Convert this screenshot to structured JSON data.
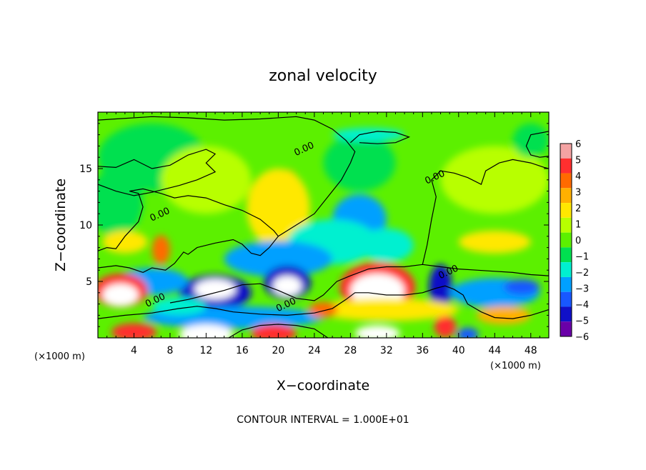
{
  "chart_data": {
    "type": "heatmap",
    "title": "zonal velocity",
    "xlabel": "X−coordinate",
    "ylabel": "Z−coordinate",
    "x_unit_left": "(×1000 m)",
    "x_unit_right": "(×1000 m)",
    "xlim": [
      0,
      50
    ],
    "ylim": [
      0,
      20
    ],
    "x_ticks": [
      4,
      8,
      12,
      16,
      20,
      24,
      28,
      32,
      36,
      40,
      44,
      48
    ],
    "x_tick_labels": [
      "4",
      "8",
      "12",
      "16",
      "20",
      "24",
      "28",
      "32",
      "36",
      "40",
      "44",
      "48"
    ],
    "y_ticks": [
      5,
      10,
      15
    ],
    "y_tick_labels": [
      "5",
      "10",
      "15"
    ],
    "colorbar": {
      "min": -6,
      "max": 6,
      "tick_labels": [
        "6",
        "5",
        "4",
        "3",
        "2",
        "1",
        "0",
        "−1",
        "−2",
        "−3",
        "−4",
        "−5",
        "−6"
      ],
      "colors": [
        "#f4a3a3",
        "#ff2f2f",
        "#ff6a00",
        "#ffb000",
        "#ffe800",
        "#b8ff00",
        "#5cf000",
        "#00e050",
        "#00f0d0",
        "#00a0ff",
        "#1858ff",
        "#1010c8",
        "#6a00a8"
      ]
    },
    "contour_labels": [
      "0.00",
      "0.00",
      "0.00",
      "0.00",
      "0.00",
      "0.00"
    ],
    "contour_interval_text": "CONTOUR INTERVAL = 1.000E+01",
    "blobs": [
      {
        "x": 21,
        "y": 12.7,
        "rx": 1.6,
        "ry": 2.2,
        "v": 3.2
      },
      {
        "x": 20,
        "y": 11.5,
        "rx": 3.5,
        "ry": 3.5,
        "v": 1.6
      },
      {
        "x": 6,
        "y": 16,
        "rx": 6,
        "ry": 3,
        "v": -0.9
      },
      {
        "x": 2,
        "y": 12,
        "rx": 3,
        "ry": 3,
        "v": -0.8
      },
      {
        "x": 12,
        "y": 14,
        "rx": 5,
        "ry": 3,
        "v": 0.7
      },
      {
        "x": 29,
        "y": 15.5,
        "rx": 4,
        "ry": 2.5,
        "v": -1.0
      },
      {
        "x": 30,
        "y": 18,
        "rx": 4,
        "ry": 0.6,
        "v": -1.6
      },
      {
        "x": 44,
        "y": 14,
        "rx": 6,
        "ry": 3,
        "v": 0.5
      },
      {
        "x": 48,
        "y": 17.5,
        "rx": 2,
        "ry": 1.5,
        "v": -1.0
      },
      {
        "x": 29,
        "y": 10.5,
        "rx": 3,
        "ry": 2.2,
        "v": -2.6
      },
      {
        "x": 26,
        "y": 8.5,
        "rx": 5,
        "ry": 2,
        "v": -2.5
      },
      {
        "x": 20,
        "y": 7,
        "rx": 6,
        "ry": 1.6,
        "v": -3.5
      },
      {
        "x": 32,
        "y": 8.2,
        "rx": 3,
        "ry": 1.5,
        "v": -2.0
      },
      {
        "x": 13,
        "y": 4,
        "rx": 4,
        "ry": 1.6,
        "v": -5.0
      },
      {
        "x": 13,
        "y": 4.3,
        "rx": 2.3,
        "ry": 0.9,
        "v": -7
      },
      {
        "x": 21,
        "y": 4.9,
        "rx": 2.6,
        "ry": 1.5,
        "v": -5.0
      },
      {
        "x": 21,
        "y": 4.6,
        "rx": 1.6,
        "ry": 0.9,
        "v": -7
      },
      {
        "x": 6,
        "y": 5,
        "rx": 4,
        "ry": 1.2,
        "v": -3.2
      },
      {
        "x": 2.5,
        "y": 4.2,
        "rx": 3,
        "ry": 1.5,
        "v": 5.2
      },
      {
        "x": 2.5,
        "y": 3.8,
        "rx": 2,
        "ry": 1,
        "v": 7
      },
      {
        "x": 7,
        "y": 7.8,
        "rx": 1,
        "ry": 1.3,
        "v": 3.6
      },
      {
        "x": 3,
        "y": 8.5,
        "rx": 2.5,
        "ry": 1,
        "v": 1.8
      },
      {
        "x": 31,
        "y": 4.5,
        "rx": 4.2,
        "ry": 2.2,
        "v": 5.2
      },
      {
        "x": 31,
        "y": 4.2,
        "rx": 3,
        "ry": 1.5,
        "v": 7
      },
      {
        "x": 38,
        "y": 4.5,
        "rx": 1.3,
        "ry": 2,
        "v": -4.8
      },
      {
        "x": 38.5,
        "y": 1,
        "rx": 1.2,
        "ry": 1,
        "v": 5.2
      },
      {
        "x": 44,
        "y": 4,
        "rx": 5,
        "ry": 1.3,
        "v": -3.0
      },
      {
        "x": 47,
        "y": 4.5,
        "rx": 2,
        "ry": 0.7,
        "v": -4.5
      },
      {
        "x": 44,
        "y": 8.5,
        "rx": 4,
        "ry": 1,
        "v": 1.8
      },
      {
        "x": 45,
        "y": 2,
        "rx": 3,
        "ry": 0.8,
        "v": 2.5
      },
      {
        "x": 15,
        "y": 1.8,
        "rx": 10,
        "ry": 1,
        "v": -3.5
      },
      {
        "x": 32,
        "y": 2.5,
        "rx": 8,
        "ry": 1,
        "v": 2.4
      },
      {
        "x": 12,
        "y": 0.3,
        "rx": 3,
        "ry": 0.9,
        "v": 7
      },
      {
        "x": 4,
        "y": 0.5,
        "rx": 2.5,
        "ry": 0.8,
        "v": 5
      },
      {
        "x": 19.5,
        "y": 0.4,
        "rx": 2.5,
        "ry": 0.8,
        "v": 5
      },
      {
        "x": 31,
        "y": 0.4,
        "rx": 2.5,
        "ry": 0.7,
        "v": 7
      },
      {
        "x": 41,
        "y": 0.3,
        "rx": 1.2,
        "ry": 0.6,
        "v": -4
      },
      {
        "x": 9,
        "y": 2.8,
        "rx": 3,
        "ry": 0.8,
        "v": -2.5
      },
      {
        "x": 25,
        "y": 2.5,
        "rx": 1.6,
        "ry": 0.7,
        "v": 4
      }
    ],
    "contours": [
      [
        [
          0,
          15.2
        ],
        [
          2,
          15.1
        ],
        [
          4,
          15.8
        ],
        [
          6,
          15
        ],
        [
          8,
          15.3
        ],
        [
          10,
          16.2
        ],
        [
          12,
          16.7
        ],
        [
          13,
          16.3
        ],
        [
          12,
          15.5
        ],
        [
          13,
          14.7
        ],
        [
          11,
          14
        ],
        [
          9,
          13.5
        ],
        [
          7.5,
          13.2
        ],
        [
          6,
          12.9
        ],
        [
          4,
          12.6
        ],
        [
          2,
          13
        ],
        [
          0,
          13.6
        ]
      ],
      [
        [
          0,
          7.7
        ],
        [
          1,
          8
        ],
        [
          2,
          7.9
        ],
        [
          3,
          9
        ],
        [
          4.5,
          10.3
        ],
        [
          5,
          11.6
        ],
        [
          4.5,
          12.8
        ],
        [
          3.5,
          13
        ],
        [
          5,
          13.2
        ],
        [
          7,
          12.8
        ],
        [
          8.5,
          12.4
        ],
        [
          10,
          12.6
        ],
        [
          12,
          12.4
        ],
        [
          14,
          11.8
        ],
        [
          16,
          11.3
        ],
        [
          18,
          10.5
        ],
        [
          19.5,
          9.5
        ],
        [
          20,
          9
        ],
        [
          19,
          8
        ],
        [
          18,
          7.3
        ],
        [
          17,
          7.5
        ],
        [
          16,
          8.3
        ],
        [
          15,
          8.7
        ],
        [
          13,
          8.4
        ],
        [
          11,
          8
        ],
        [
          10,
          7.4
        ],
        [
          9.5,
          7.6
        ],
        [
          8.5,
          6.6
        ],
        [
          7.5,
          6
        ],
        [
          6,
          6.2
        ],
        [
          5,
          5.8
        ],
        [
          3.5,
          6.2
        ],
        [
          2,
          6.4
        ],
        [
          0,
          6.2
        ]
      ],
      [
        [
          20,
          9
        ],
        [
          22,
          10
        ],
        [
          24,
          11
        ],
        [
          25.5,
          12.5
        ],
        [
          27,
          14
        ],
        [
          28,
          15.5
        ],
        [
          28.5,
          16.5
        ],
        [
          27.5,
          17.5
        ],
        [
          26,
          18.5
        ],
        [
          24,
          19.3
        ],
        [
          22,
          19.6
        ],
        [
          18,
          19.4
        ],
        [
          14,
          19.3
        ],
        [
          10,
          19.5
        ],
        [
          6,
          19.6
        ],
        [
          2,
          19.4
        ],
        [
          0,
          19.3
        ]
      ],
      [
        [
          28,
          17.3
        ],
        [
          29,
          18
        ],
        [
          31,
          18.3
        ],
        [
          33,
          18.2
        ],
        [
          34.5,
          17.8
        ],
        [
          33,
          17.3
        ],
        [
          31,
          17.2
        ],
        [
          29,
          17.3
        ]
      ],
      [
        [
          36,
          6.5
        ],
        [
          36.5,
          8.2
        ],
        [
          37,
          10.5
        ],
        [
          37.5,
          12.5
        ],
        [
          37,
          14
        ],
        [
          38,
          14.8
        ],
        [
          39.5,
          14.6
        ],
        [
          41,
          14.2
        ],
        [
          42.5,
          13.6
        ],
        [
          43,
          14.8
        ],
        [
          44.5,
          15.5
        ],
        [
          46,
          15.8
        ],
        [
          48,
          15.5
        ],
        [
          49.5,
          15.1
        ],
        [
          50,
          15
        ]
      ],
      [
        [
          50,
          18.3
        ],
        [
          48,
          18
        ],
        [
          47.5,
          17
        ],
        [
          48,
          16.2
        ],
        [
          49,
          16
        ],
        [
          50,
          16.1
        ]
      ],
      [
        [
          8,
          3.1
        ],
        [
          10,
          3.4
        ],
        [
          12,
          3.8
        ],
        [
          14,
          4.2
        ],
        [
          16,
          4.7
        ],
        [
          18,
          4.8
        ],
        [
          20,
          4.2
        ],
        [
          22,
          3.5
        ],
        [
          24,
          3.3
        ],
        [
          25,
          3.8
        ],
        [
          26.5,
          5
        ],
        [
          28,
          5.5
        ],
        [
          30,
          6.1
        ],
        [
          32,
          6.3
        ],
        [
          34,
          6.3
        ],
        [
          36,
          6.5
        ],
        [
          38,
          6.3
        ],
        [
          40,
          6.1
        ],
        [
          42,
          6
        ],
        [
          44,
          5.9
        ],
        [
          46,
          5.8
        ],
        [
          48,
          5.6
        ],
        [
          50,
          5.5
        ]
      ],
      [
        [
          0,
          1.7
        ],
        [
          3,
          2
        ],
        [
          6,
          2.2
        ],
        [
          9,
          2.6
        ],
        [
          11,
          2.8
        ],
        [
          13,
          2.6
        ],
        [
          15,
          2.3
        ],
        [
          18,
          2.1
        ],
        [
          21,
          2
        ],
        [
          24,
          2.2
        ],
        [
          26,
          2.6
        ],
        [
          27.5,
          3.4
        ],
        [
          28.5,
          4
        ],
        [
          30,
          4
        ],
        [
          32,
          3.8
        ],
        [
          34,
          3.8
        ],
        [
          36,
          4
        ],
        [
          37.5,
          4.4
        ],
        [
          38.5,
          4.6
        ],
        [
          39.5,
          4.3
        ],
        [
          40.5,
          3.8
        ],
        [
          41,
          3
        ],
        [
          42.5,
          2.3
        ],
        [
          44,
          1.8
        ],
        [
          46,
          1.7
        ],
        [
          48,
          2
        ],
        [
          50,
          2.5
        ]
      ],
      [
        [
          14.5,
          0
        ],
        [
          16,
          0.7
        ],
        [
          18,
          1.1
        ],
        [
          20,
          1.2
        ],
        [
          22,
          1.1
        ],
        [
          24,
          0.8
        ],
        [
          25.5,
          0
        ]
      ]
    ],
    "contour_label_positions": [
      [
        23,
        16.5
      ],
      [
        7,
        10.7
      ],
      [
        37.5,
        14
      ],
      [
        39,
        5.6
      ],
      [
        6.5,
        3.1
      ],
      [
        21,
        2.7
      ]
    ]
  }
}
